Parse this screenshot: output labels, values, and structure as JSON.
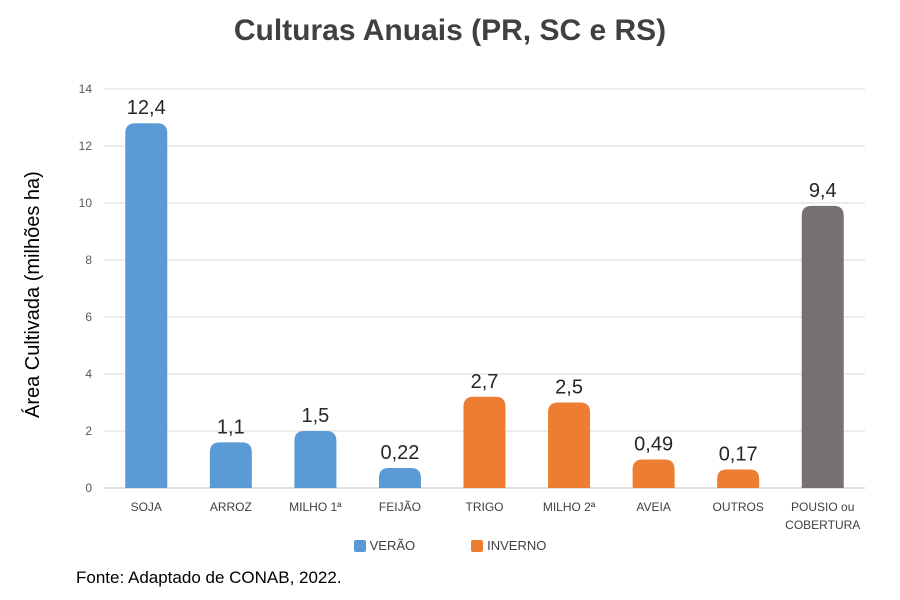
{
  "chart_data": {
    "type": "bar",
    "title": "Culturas Anuais (PR, SC e RS)",
    "ylabel": "Área Cultivada (milhões ha)",
    "xlabel": "",
    "ylim": [
      0,
      14
    ],
    "yticks": [
      0,
      2,
      4,
      6,
      8,
      10,
      12,
      14
    ],
    "grid": true,
    "categories": [
      "SOJA",
      "ARROZ",
      "MILHO 1ª",
      "FEIJÃO",
      "TRIGO",
      "MILHO 2ª",
      "AVEIA",
      "OUTROS",
      "POUSIO ou COBERTURA"
    ],
    "values": [
      12.8,
      1.6,
      2.0,
      0.7,
      3.2,
      3.0,
      1.0,
      0.65,
      9.9
    ],
    "data_labels": [
      "12,4",
      "1,1",
      "1,5",
      "0,22",
      "2,7",
      "2,5",
      "0,49",
      "0,17",
      "9,4"
    ],
    "bar_groups": [
      "verao",
      "verao",
      "verao",
      "verao",
      "inverno",
      "inverno",
      "inverno",
      "inverno",
      "other"
    ],
    "legend_position": "bottom",
    "legend": [
      {
        "key": "verao",
        "label": "VERÃO",
        "color": "#5B9BD5"
      },
      {
        "key": "inverno",
        "label": "INVERNO",
        "color": "#ED7D31"
      }
    ],
    "colors": {
      "verao": "#5B9BD5",
      "inverno": "#ED7D31",
      "other": "#767171"
    }
  },
  "source": "Fonte: Adaptado de CONAB, 2022."
}
